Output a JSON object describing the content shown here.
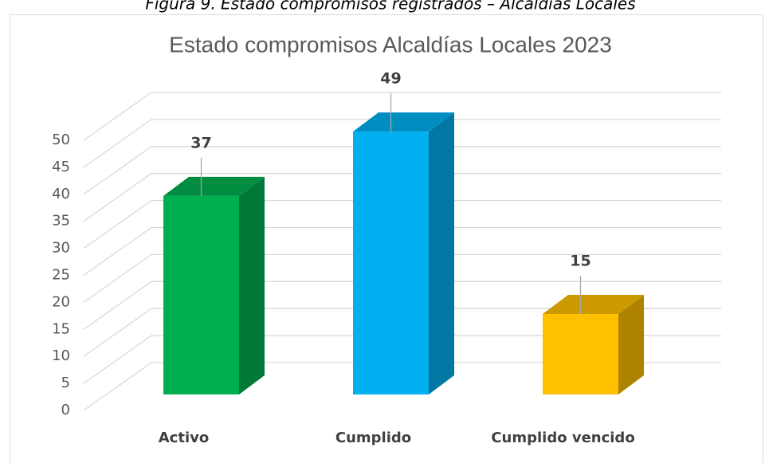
{
  "caption": "Figura 9. Estado compromisos registrados – Alcaldías Locales",
  "chart_data": {
    "type": "bar3d",
    "title": "Estado compromisos Alcaldías Locales 2023",
    "categories": [
      "Activo",
      "Cumplido",
      "Cumplido vencido"
    ],
    "values": [
      37,
      49,
      15
    ],
    "colors": [
      "#00b050",
      "#00b0f0",
      "#ffc000"
    ],
    "ylim": [
      0,
      50
    ],
    "yticks": [
      0,
      5,
      10,
      15,
      20,
      25,
      30,
      35,
      40,
      45,
      50
    ],
    "grid": true
  }
}
